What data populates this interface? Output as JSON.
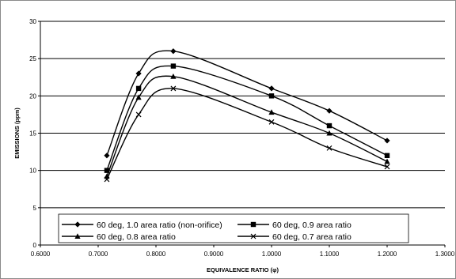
{
  "chart_data": {
    "type": "line",
    "title": "",
    "xlabel": "EQUIVALENCE RATIO (φ)",
    "ylabel": "EMISSIONS (ppm)",
    "xlim": [
      0.6,
      1.3
    ],
    "ylim": [
      0,
      30
    ],
    "x_ticks": [
      "0.6000",
      "0.7000",
      "0.8000",
      "0.9000",
      "1.0000",
      "1.1000",
      "1.2000",
      "1.3000"
    ],
    "y_ticks": [
      "0",
      "5",
      "10",
      "15",
      "20",
      "25",
      "30"
    ],
    "grid": true,
    "legend": "bottom",
    "series": [
      {
        "name": "60 deg, 1.0 area ratio (non-orifice)",
        "marker": "diamond",
        "x": [
          0.715,
          0.77,
          0.83,
          1.0,
          1.1,
          1.2
        ],
        "y": [
          12,
          23,
          26,
          21,
          18,
          14
        ]
      },
      {
        "name": "60 deg, 0.9 area ratio",
        "marker": "square",
        "x": [
          0.715,
          0.77,
          0.83,
          1.0,
          1.1,
          1.2
        ],
        "y": [
          10,
          21,
          24,
          20,
          16,
          12
        ]
      },
      {
        "name": "60 deg, 0.8 area ratio",
        "marker": "triangle",
        "x": [
          0.715,
          0.77,
          0.83,
          1.0,
          1.1,
          1.2
        ],
        "y": [
          9.2,
          19.8,
          22.6,
          17.8,
          15,
          11.2
        ]
      },
      {
        "name": "60 deg, 0.7 area ratio",
        "marker": "x",
        "x": [
          0.715,
          0.77,
          0.83,
          1.0,
          1.1,
          1.2
        ],
        "y": [
          8.8,
          17.5,
          21,
          16.5,
          13,
          10.5
        ]
      }
    ]
  }
}
